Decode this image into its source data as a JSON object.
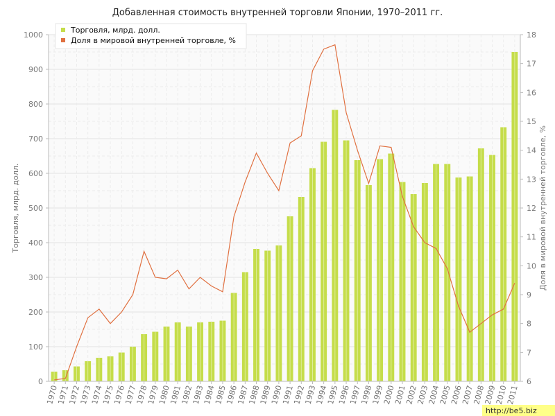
{
  "chart_data": {
    "type": "bar",
    "title": "Добавленная стоимость внутренней торговли Японии, 1970–2011 гг.",
    "categories": [
      "1970",
      "1971",
      "1972",
      "1973",
      "1974",
      "1975",
      "1976",
      "1977",
      "1978",
      "1979",
      "1980",
      "1981",
      "1982",
      "1983",
      "1984",
      "1985",
      "1986",
      "1987",
      "1988",
      "1989",
      "1990",
      "1991",
      "1992",
      "1993",
      "1994",
      "1995",
      "1996",
      "1997",
      "1998",
      "1999",
      "2000",
      "2001",
      "2002",
      "2003",
      "2004",
      "2005",
      "2006",
      "2007",
      "2008",
      "2009",
      "2010",
      "2011"
    ],
    "series": [
      {
        "name": "Торговля, млрд. долл.",
        "type": "bar",
        "axis": "left",
        "color": "#c5dd4a",
        "values": [
          28,
          32,
          43,
          58,
          68,
          72,
          83,
          100,
          136,
          143,
          158,
          170,
          158,
          170,
          172,
          175,
          255,
          315,
          382,
          377,
          392,
          476,
          532,
          615,
          691,
          783,
          695,
          638,
          566,
          641,
          657,
          575,
          540,
          572,
          627,
          627,
          588,
          591,
          672,
          653,
          733,
          950
        ]
      },
      {
        "name": "Доля в мировой внутренней торговле, %",
        "type": "line",
        "axis": "right",
        "color": "#e07040",
        "values": [
          6.05,
          6.1,
          7.2,
          8.2,
          8.5,
          8.0,
          8.4,
          9.0,
          10.5,
          9.6,
          9.55,
          9.85,
          9.2,
          9.6,
          9.3,
          9.1,
          11.7,
          12.9,
          13.9,
          13.2,
          12.6,
          14.25,
          14.5,
          16.75,
          17.5,
          17.65,
          15.3,
          14.0,
          12.85,
          14.15,
          14.1,
          12.4,
          11.35,
          10.8,
          10.6,
          9.9,
          8.6,
          7.7,
          8.0,
          8.3,
          8.5,
          9.4
        ]
      }
    ],
    "ylabel": "Торговля, млрд. долл.",
    "ylabel_right": "Доля в мировой внутренней торговле, %",
    "ylim": [
      0,
      1000
    ],
    "yticks": [
      0,
      100,
      200,
      300,
      400,
      500,
      600,
      700,
      800,
      900,
      1000
    ],
    "ylim_right": [
      6,
      18
    ],
    "yticks_right": [
      6,
      7,
      8,
      9,
      10,
      11,
      12,
      13,
      14,
      15,
      16,
      17,
      18
    ],
    "grid": true,
    "legend": "top-left"
  },
  "watermark": "http://be5.biz"
}
